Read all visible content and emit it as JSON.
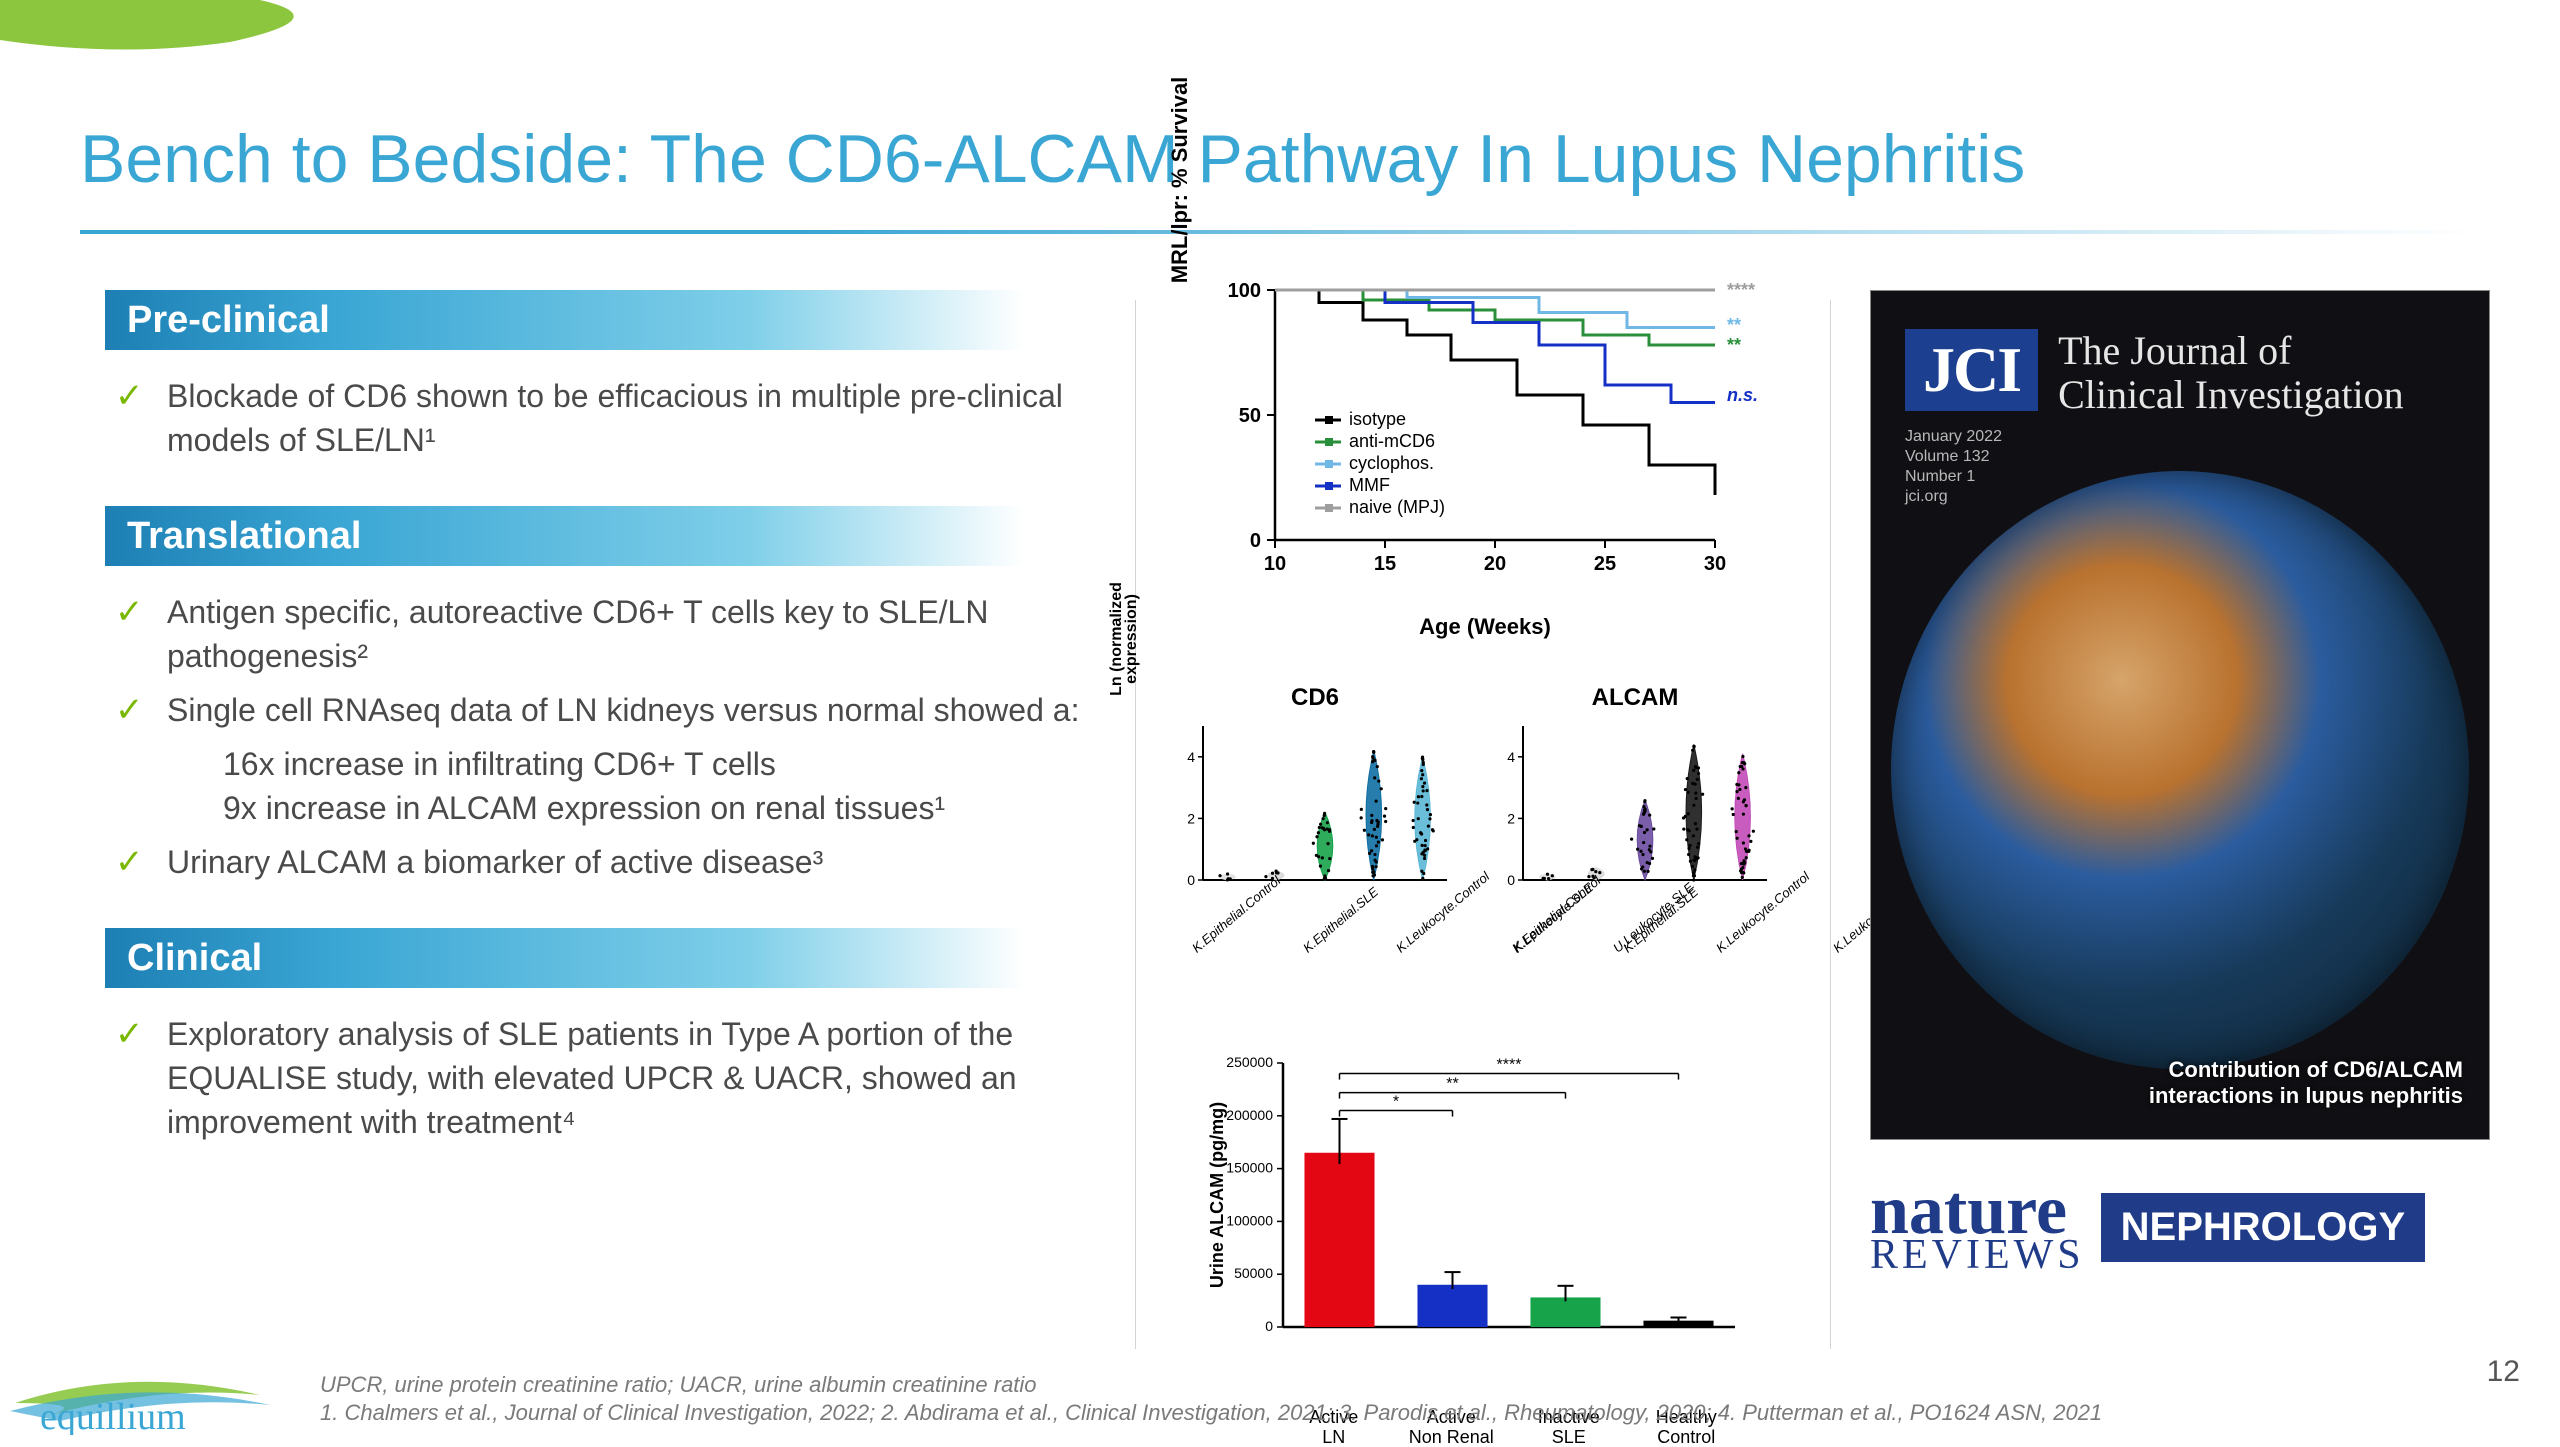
{
  "slide": {
    "title": "Bench to Bedside: The CD6-ALCAM Pathway In Lupus Nephritis",
    "page_number": "12"
  },
  "colors": {
    "accent_blue": "#3aa6d4",
    "check_green": "#7ab800",
    "text_gray": "#4a4a4a",
    "jci_blue": "#1c3f8f",
    "nature_blue": "#203c88"
  },
  "sections": {
    "preclinical": {
      "heading": "Pre-clinical",
      "bullets": [
        "Blockade of CD6 shown to be efficacious in multiple pre-clinical models of SLE/LN¹"
      ]
    },
    "translational": {
      "heading": "Translational",
      "bullets": [
        "Antigen specific, autoreactive CD6+ T cells key to SLE/LN pathogenesis²",
        "Single cell RNAseq data of LN kidneys versus normal showed a:",
        "Urinary ALCAM a biomarker of active disease³"
      ],
      "sub_bullets": [
        "16x increase in infiltrating CD6+ T cells",
        "9x increase in ALCAM expression on renal tissues¹"
      ]
    },
    "clinical": {
      "heading": "Clinical",
      "bullets": [
        "Exploratory analysis of SLE patients in Type A portion of the EQUALISE study, with elevated UPCR & UACR, showed an improvement with treatment⁴"
      ]
    }
  },
  "survival_chart": {
    "type": "line",
    "y_label": "MRL/lpr: % Survival",
    "x_label": "Age (Weeks)",
    "xlim": [
      10,
      30
    ],
    "xticks": [
      10,
      15,
      20,
      25,
      30
    ],
    "ylim": [
      0,
      100
    ],
    "yticks": [
      0,
      50,
      100
    ],
    "axis_color": "#000000",
    "axis_width": 2.5,
    "label_fontsize": 22,
    "tick_fontsize": 20,
    "series": [
      {
        "name": "isotype",
        "color": "#000000",
        "width": 3,
        "points": [
          [
            10,
            100
          ],
          [
            12,
            100
          ],
          [
            12,
            95
          ],
          [
            14,
            95
          ],
          [
            14,
            88
          ],
          [
            16,
            88
          ],
          [
            16,
            82
          ],
          [
            18,
            82
          ],
          [
            18,
            72
          ],
          [
            21,
            72
          ],
          [
            21,
            58
          ],
          [
            24,
            58
          ],
          [
            24,
            46
          ],
          [
            27,
            46
          ],
          [
            27,
            30
          ],
          [
            30,
            30
          ],
          [
            30,
            18
          ]
        ]
      },
      {
        "name": "anti-mCD6",
        "color": "#2a8f3a",
        "width": 3,
        "points": [
          [
            10,
            100
          ],
          [
            14,
            100
          ],
          [
            14,
            96
          ],
          [
            17,
            96
          ],
          [
            17,
            92
          ],
          [
            20,
            92
          ],
          [
            20,
            88
          ],
          [
            24,
            88
          ],
          [
            24,
            82
          ],
          [
            27,
            82
          ],
          [
            27,
            78
          ],
          [
            30,
            78
          ]
        ]
      },
      {
        "name": "cyclophos.",
        "color": "#6fb8e6",
        "width": 3,
        "points": [
          [
            10,
            100
          ],
          [
            16,
            100
          ],
          [
            16,
            97
          ],
          [
            22,
            97
          ],
          [
            22,
            91
          ],
          [
            26,
            91
          ],
          [
            26,
            85
          ],
          [
            30,
            85
          ]
        ]
      },
      {
        "name": "MMF",
        "color": "#1530c4",
        "width": 3,
        "points": [
          [
            10,
            100
          ],
          [
            15,
            100
          ],
          [
            15,
            95
          ],
          [
            19,
            95
          ],
          [
            19,
            87
          ],
          [
            22,
            87
          ],
          [
            22,
            78
          ],
          [
            25,
            78
          ],
          [
            25,
            62
          ],
          [
            28,
            62
          ],
          [
            28,
            55
          ],
          [
            30,
            55
          ]
        ]
      },
      {
        "name": "naive (MPJ)",
        "color": "#9e9e9e",
        "width": 3,
        "points": [
          [
            10,
            100
          ],
          [
            30,
            100
          ]
        ]
      }
    ],
    "sig_labels": [
      {
        "text": "****",
        "color": "#9e9e9e",
        "y": 100
      },
      {
        "text": "**",
        "color": "#6fb8e6",
        "y": 86
      },
      {
        "text": "**",
        "color": "#2a8f3a",
        "y": 78
      },
      {
        "text": "n.s.",
        "color": "#1530c4",
        "y": 58
      }
    ],
    "legend": {
      "items": [
        "isotype",
        "anti-mCD6",
        "cyclophos.",
        "MMF",
        "naive (MPJ)"
      ],
      "colors": [
        "#000000",
        "#2a8f3a",
        "#6fb8e6",
        "#1530c4",
        "#9e9e9e"
      ],
      "fontsize": 18
    }
  },
  "violin_plots": {
    "title_left": "CD6",
    "title_right": "ALCAM",
    "y_label_line1": "Ln (normalized",
    "y_label_line2": "expression)",
    "ylim": [
      0,
      5
    ],
    "yticks": [
      0,
      2,
      4
    ],
    "categories": [
      "K.Epithelial.Control",
      "K.Epithelial.SLE",
      "K.Leukocyte.Control",
      "K.Leukocyte.SLE",
      "U.Leukocyte.SLE"
    ],
    "cd6": {
      "heights": [
        0.2,
        0.3,
        2.2,
        4.2,
        4.0
      ],
      "colors": [
        "#e0e0e0",
        "#d9d9d9",
        "#17a34a",
        "#0f6fa3",
        "#5ab7d6"
      ]
    },
    "alcam": {
      "heights": [
        0.2,
        0.4,
        2.6,
        4.4,
        4.1
      ],
      "colors": [
        "#e0e0e0",
        "#d9d9d9",
        "#6b4ca0",
        "#1a1a1a",
        "#c24bb8"
      ]
    },
    "scatter_color": "#000000",
    "violin_alpha": 0.9,
    "axis_color": "#000000",
    "axis_width": 2
  },
  "bar_chart": {
    "type": "bar",
    "y_label": "Urine ALCAM (pg/mg)",
    "ylim": [
      0,
      250000
    ],
    "ytick_step": 50000,
    "y_tick_format_short": [
      "0",
      "50000",
      "100000",
      "150000",
      "200000",
      "250000"
    ],
    "label_fontsize": 18,
    "tick_fontsize": 14,
    "axis_color": "#000000",
    "axis_width": 2.5,
    "categories": [
      "Active LN",
      "Active Non Renal",
      "Inactive SLE",
      "Healthy Control"
    ],
    "values": [
      165000,
      40000,
      28000,
      6000
    ],
    "errors": [
      32000,
      12000,
      11000,
      3000
    ],
    "colors": [
      "#e30613",
      "#1530c4",
      "#17a34a",
      "#000000"
    ],
    "bar_width": 0.62,
    "significance_bars": [
      {
        "from": 0,
        "to": 1,
        "y": 205000,
        "label": "*"
      },
      {
        "from": 0,
        "to": 2,
        "y": 222000,
        "label": "**"
      },
      {
        "from": 0,
        "to": 3,
        "y": 240000,
        "label": "****"
      }
    ]
  },
  "jci": {
    "logo": "JCI",
    "title_line1": "The Journal of",
    "title_line2": "Clinical Investigation",
    "meta_line1": "January 2022",
    "meta_line2": "Volume 132",
    "meta_line3": "Number 1",
    "meta_line4": "jci.org",
    "caption_line1": "Contribution of CD6/ALCAM",
    "caption_line2": "interactions in lupus nephritis"
  },
  "nature": {
    "word": "nature",
    "reviews": "REVIEWS",
    "box": "NEPHROLOGY"
  },
  "footer": {
    "line1": "UPCR, urine protein creatinine ratio; UACR, urine albumin creatinine ratio",
    "line2": "1. Chalmers et al., Journal of Clinical Investigation, 2022; 2. Abdirama et al., Clinical Investigation, 2021; 3. Parodis et al., Rheumatology, 2020; 4. Putterman et al., PO1624 ASN, 2021"
  },
  "equillium_logo": "equillium"
}
